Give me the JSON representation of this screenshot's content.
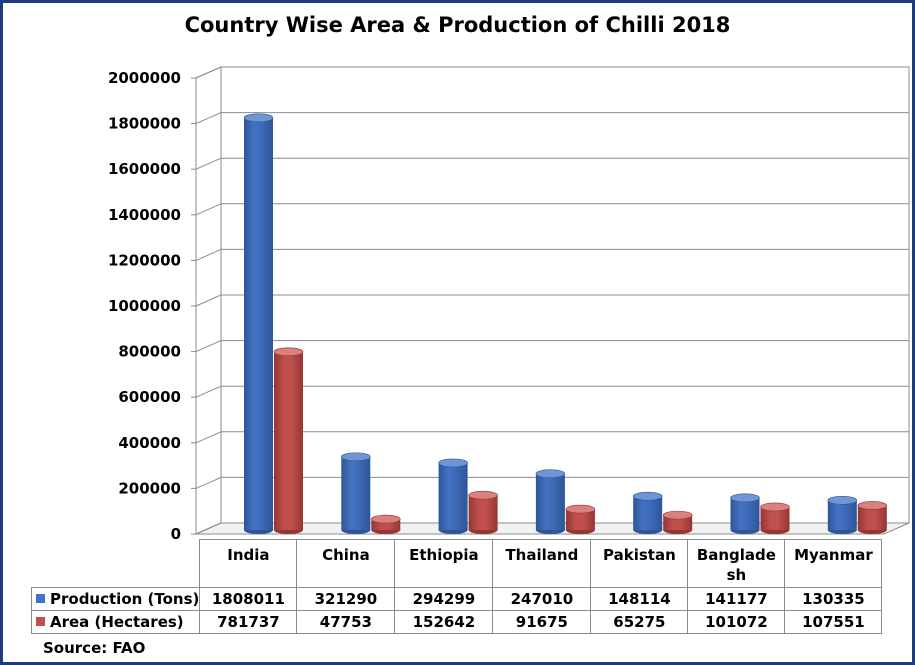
{
  "chart_data": {
    "type": "bar",
    "title": "Country Wise Area & Production of Chilli 2018",
    "categories": [
      "India",
      "China",
      "Ethiopia",
      "Thailand",
      "Pakistan",
      "Banglade sh",
      "Myanmar"
    ],
    "series": [
      {
        "name": "Production (Tons)",
        "values": [
          1808011,
          321290,
          294299,
          247010,
          148114,
          141177,
          130335
        ],
        "color": "#4472c4"
      },
      {
        "name": "Area (Hectares)",
        "values": [
          781737,
          47753,
          152642,
          91675,
          65275,
          101072,
          107551
        ],
        "color": "#c0504d"
      }
    ],
    "yticks": [
      "0",
      "200000",
      "400000",
      "600000",
      "800000",
      "1000000",
      "1200000",
      "1400000",
      "1600000",
      "1800000",
      "2000000"
    ],
    "ylim": [
      0,
      2000000
    ],
    "grid": true,
    "legend": "data-table"
  },
  "source": "Source: FAO"
}
